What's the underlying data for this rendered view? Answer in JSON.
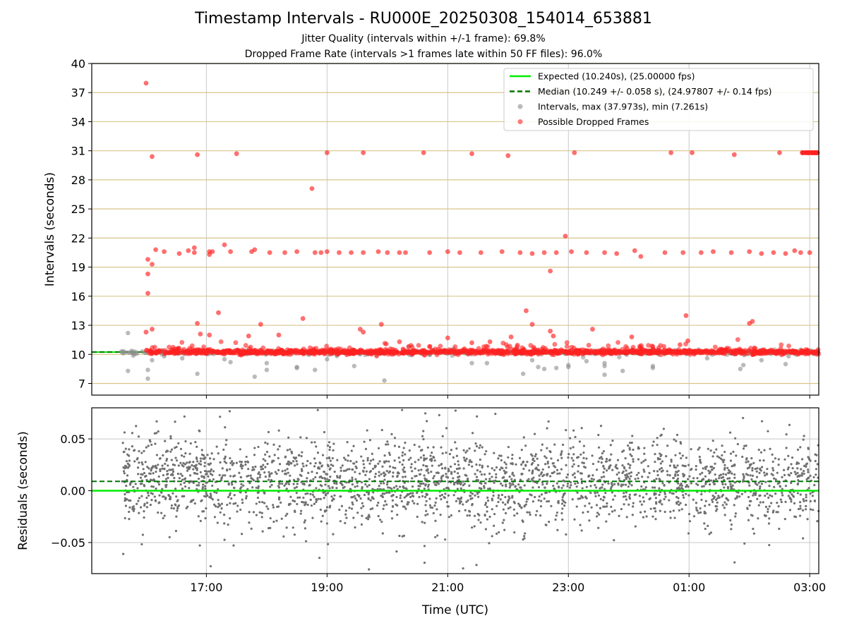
{
  "chart_data": [
    {
      "type": "scatter",
      "title": "Timestamp Intervals - RU000E_20250308_154014_653881",
      "subtitle_lines": [
        "Jitter Quality (intervals within +/-1 frame): 69.8%",
        "Dropped Frame Rate (intervals >1 frames late within 50 FF files): 96.0%"
      ],
      "xlabel": "",
      "ylabel": "Intervals (seconds)",
      "x_unit": "hours since 15:00 UTC (axis labelled in clock time)",
      "xlim": [
        0.1,
        12.15
      ],
      "ylim": [
        5.8,
        40
      ],
      "yticks": [
        7,
        10,
        13,
        16,
        19,
        22,
        25,
        28,
        31,
        34,
        37,
        40
      ],
      "xticks": [
        2,
        4,
        6,
        8,
        10,
        12
      ],
      "xtick_labels": [
        "17:00",
        "19:00",
        "21:00",
        "23:00",
        "01:00",
        "03:00"
      ],
      "grid": "horizontal lines goldenrod, vertical lines grey",
      "legend_position": "upper-right",
      "lines": [
        {
          "name": "Expected (10.240s), (25.00000 fps)",
          "y": 10.24,
          "color": "#00ee00",
          "style": "solid"
        },
        {
          "name": "Median (10.249 +/- 0.058 s), (24.97807 +/- 0.14 fps)",
          "y": 10.249,
          "color": "#007700",
          "style": "dashed"
        }
      ],
      "series": [
        {
          "name": "Intervals, max (37.973s), min (7.261s)",
          "color": "#8c8c8c",
          "outliers": [
            [
              0.7,
              12.2
            ],
            [
              0.7,
              8.3
            ],
            [
              1.03,
              8.4
            ],
            [
              1.03,
              7.5
            ],
            [
              1.1,
              9.4
            ],
            [
              1.3,
              9.8
            ],
            [
              1.6,
              9.6
            ],
            [
              1.85,
              8.0
            ],
            [
              2.3,
              9.5
            ],
            [
              2.4,
              9.2
            ],
            [
              2.8,
              7.7
            ],
            [
              3.0,
              9.1
            ],
            [
              3.0,
              8.4
            ],
            [
              3.5,
              8.7
            ],
            [
              3.5,
              8.6
            ],
            [
              3.8,
              8.4
            ],
            [
              4.0,
              9.5
            ],
            [
              4.45,
              8.8
            ],
            [
              4.95,
              7.3
            ],
            [
              5.35,
              10.8
            ],
            [
              6.1,
              10.6
            ],
            [
              6.4,
              9.1
            ],
            [
              6.65,
              9.1
            ],
            [
              7.25,
              8.0
            ],
            [
              7.4,
              9.4
            ],
            [
              7.5,
              8.7
            ],
            [
              7.6,
              8.5
            ],
            [
              7.8,
              8.6
            ],
            [
              8.0,
              8.7
            ],
            [
              8.0,
              8.9
            ],
            [
              8.3,
              9.3
            ],
            [
              8.6,
              9.1
            ],
            [
              8.6,
              7.9
            ],
            [
              8.6,
              8.8
            ],
            [
              8.9,
              8.3
            ],
            [
              9.4,
              8.8
            ],
            [
              9.4,
              8.6
            ],
            [
              10.3,
              9.6
            ],
            [
              10.85,
              8.5
            ],
            [
              10.9,
              8.9
            ],
            [
              11.2,
              9.4
            ],
            [
              11.6,
              9.0
            ],
            [
              11.65,
              9.8
            ]
          ]
        },
        {
          "name": "Possible Dropped Frames",
          "color": "#ff2222",
          "outliers": [
            [
              1.0,
              37.973
            ],
            [
              1.1,
              30.4
            ],
            [
              1.85,
              30.6
            ],
            [
              2.5,
              30.7
            ],
            [
              4.0,
              30.8
            ],
            [
              4.6,
              30.8
            ],
            [
              5.6,
              30.8
            ],
            [
              6.4,
              30.7
            ],
            [
              7.0,
              30.5
            ],
            [
              8.1,
              30.8
            ],
            [
              9.7,
              30.8
            ],
            [
              10.05,
              30.8
            ],
            [
              10.75,
              30.6
            ],
            [
              11.5,
              30.8
            ],
            [
              12.0,
              30.8
            ],
            [
              3.75,
              27.1
            ],
            [
              7.95,
              22.2
            ],
            [
              7.7,
              18.6
            ],
            [
              1.03,
              19.8
            ],
            [
              1.03,
              18.3
            ],
            [
              1.03,
              16.3
            ],
            [
              1.0,
              12.3
            ],
            [
              1.1,
              12.6
            ],
            [
              1.1,
              19.3
            ],
            [
              1.16,
              20.8
            ],
            [
              1.3,
              20.6
            ],
            [
              1.55,
              20.4
            ],
            [
              1.7,
              20.7
            ],
            [
              1.8,
              20.5
            ],
            [
              1.8,
              21.0
            ],
            [
              2.05,
              20.6
            ],
            [
              2.05,
              20.3
            ],
            [
              2.1,
              20.6
            ],
            [
              2.3,
              21.3
            ],
            [
              2.4,
              20.6
            ],
            [
              2.75,
              20.6
            ],
            [
              2.8,
              20.8
            ],
            [
              3.05,
              20.5
            ],
            [
              3.3,
              20.5
            ],
            [
              3.5,
              20.6
            ],
            [
              3.8,
              20.5
            ],
            [
              3.9,
              20.5
            ],
            [
              4.0,
              20.6
            ],
            [
              4.2,
              20.5
            ],
            [
              4.4,
              20.5
            ],
            [
              4.6,
              20.5
            ],
            [
              4.85,
              20.6
            ],
            [
              5.0,
              20.5
            ],
            [
              5.2,
              20.5
            ],
            [
              5.3,
              20.5
            ],
            [
              5.7,
              20.5
            ],
            [
              6.0,
              20.6
            ],
            [
              6.2,
              20.5
            ],
            [
              6.55,
              20.5
            ],
            [
              6.9,
              20.6
            ],
            [
              7.2,
              20.5
            ],
            [
              7.4,
              20.4
            ],
            [
              7.6,
              20.5
            ],
            [
              7.8,
              20.5
            ],
            [
              8.05,
              20.6
            ],
            [
              8.3,
              20.5
            ],
            [
              8.6,
              20.5
            ],
            [
              8.8,
              20.4
            ],
            [
              9.1,
              20.7
            ],
            [
              9.2,
              20.1
            ],
            [
              9.6,
              20.5
            ],
            [
              9.9,
              20.5
            ],
            [
              10.2,
              20.5
            ],
            [
              10.4,
              20.6
            ],
            [
              10.7,
              20.5
            ],
            [
              11.0,
              20.6
            ],
            [
              11.2,
              20.4
            ],
            [
              11.4,
              20.5
            ],
            [
              11.6,
              20.4
            ],
            [
              11.75,
              20.7
            ],
            [
              11.85,
              20.5
            ],
            [
              12.0,
              20.5
            ],
            [
              1.85,
              13.2
            ],
            [
              1.9,
              12.1
            ],
            [
              2.05,
              12.0
            ],
            [
              2.2,
              14.3
            ],
            [
              2.7,
              11.9
            ],
            [
              2.9,
              13.1
            ],
            [
              3.2,
              12.0
            ],
            [
              3.6,
              13.7
            ],
            [
              4.55,
              12.6
            ],
            [
              4.6,
              12.3
            ],
            [
              4.9,
              13.1
            ],
            [
              5.2,
              11.3
            ],
            [
              5.7,
              10.8
            ],
            [
              6.0,
              11.7
            ],
            [
              6.4,
              11.2
            ],
            [
              6.7,
              11.3
            ],
            [
              7.05,
              11.8
            ],
            [
              7.3,
              14.5
            ],
            [
              7.4,
              13.1
            ],
            [
              7.7,
              12.4
            ],
            [
              7.75,
              11.9
            ],
            [
              8.4,
              12.6
            ],
            [
              9.05,
              11.8
            ],
            [
              9.4,
              10.8
            ],
            [
              9.85,
              11.0
            ],
            [
              9.95,
              14.0
            ],
            [
              9.98,
              11.4
            ],
            [
              11.0,
              13.2
            ],
            [
              11.05,
              13.4
            ]
          ]
        }
      ]
    },
    {
      "type": "scatter",
      "title": "",
      "xlabel": "Time (UTC)",
      "ylabel": "Residuals (seconds)",
      "xlim": [
        0.1,
        12.15
      ],
      "ylim": [
        -0.08,
        0.08
      ],
      "yticks": [
        -0.05,
        0.0,
        0.05
      ],
      "ytick_labels": [
        "−0.05",
        "0.00",
        "0.05"
      ],
      "xticks": [
        2,
        4,
        6,
        8,
        10,
        12
      ],
      "xtick_labels": [
        "17:00",
        "19:00",
        "21:00",
        "23:00",
        "01:00",
        "03:00"
      ],
      "grid": "on, grey",
      "lines": [
        {
          "y": 0.0,
          "color": "#00ee00",
          "style": "solid"
        },
        {
          "y": 0.009,
          "color": "#007700",
          "style": "dashed"
        }
      ],
      "series": [
        {
          "color": "#707070",
          "x_range": [
            0.6,
            12.15
          ],
          "center": 0.009,
          "spread": 0.02
        }
      ]
    }
  ],
  "legend": {
    "expected": "Expected (10.240s), (25.00000 fps)",
    "median": "Median (10.249 +/- 0.058 s), (24.97807 +/- 0.14 fps)",
    "intervals": "Intervals, max (37.973s), min (7.261s)",
    "dropped": "Possible Dropped Frames"
  }
}
